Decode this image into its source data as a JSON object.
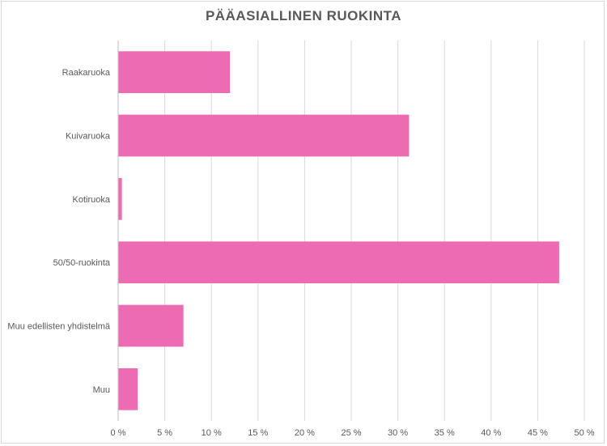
{
  "chart_data": {
    "type": "bar",
    "orientation": "horizontal",
    "title": "PÄÄASIALLINEN RUOKINTA",
    "categories": [
      "Raakaruoka",
      "Kuivaruoka",
      "Kotiruoka",
      "50/50-ruokinta",
      "Muu edellisten yhdistelmä",
      "Muu"
    ],
    "values": [
      12.0,
      31.2,
      0.4,
      47.3,
      7.0,
      2.1
    ],
    "xlim": [
      0,
      50
    ],
    "xticks": [
      "0 %",
      "5 %",
      "10 %",
      "15 %",
      "20 %",
      "25 %",
      "30 %",
      "35 %",
      "40 %",
      "45 %",
      "50 %"
    ],
    "grid": "vertical",
    "colors": {
      "bar": "#ed6bb2",
      "grid": "#d9d9d9",
      "axis": "#bfbfbf"
    }
  }
}
